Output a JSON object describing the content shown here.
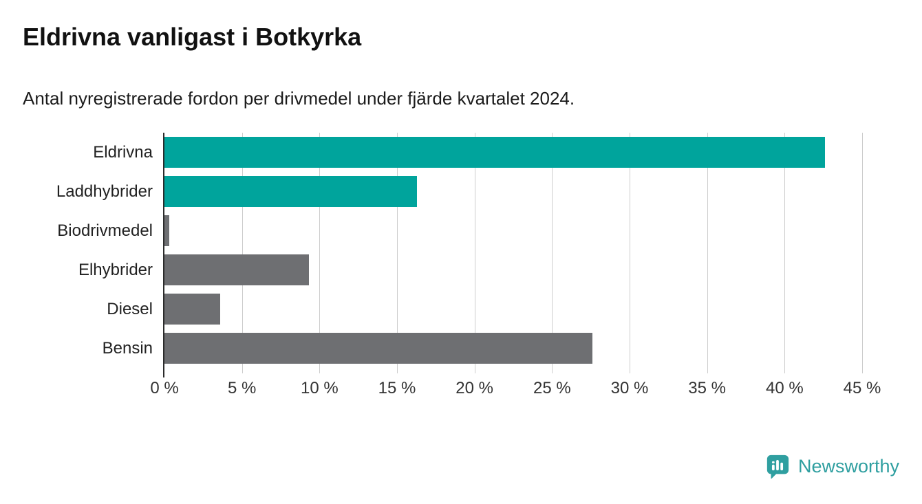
{
  "chart_data": {
    "type": "bar",
    "orientation": "horizontal",
    "title": "Eldrivna vanligast i Botkyrka",
    "subtitle": "Antal nyregistrerade fordon per drivmedel under fjärde kvartalet 2024.",
    "categories": [
      "Eldrivna",
      "Laddhybrider",
      "Biodrivmedel",
      "Elhybrider",
      "Diesel",
      "Bensin"
    ],
    "values": [
      42.6,
      16.3,
      0.3,
      9.3,
      3.6,
      27.6
    ],
    "bar_colors": [
      "#00a49c",
      "#00a49c",
      "#6e6f72",
      "#6e6f72",
      "#6e6f72",
      "#6e6f72"
    ],
    "xlim": [
      0,
      45
    ],
    "x_tick_values": [
      0,
      5,
      10,
      15,
      20,
      25,
      30,
      35,
      40,
      45
    ],
    "x_ticks": [
      "0 %",
      "5 %",
      "10 %",
      "15 %",
      "20 %",
      "25 %",
      "30 %",
      "35 %",
      "40 %",
      "45 %"
    ],
    "grid": true,
    "legend": "none",
    "accent_color": "#00a49c",
    "neutral_color": "#6e6f72"
  },
  "branding": {
    "logo_text": "Newsworthy",
    "brand_color": "#2f9fa0"
  }
}
